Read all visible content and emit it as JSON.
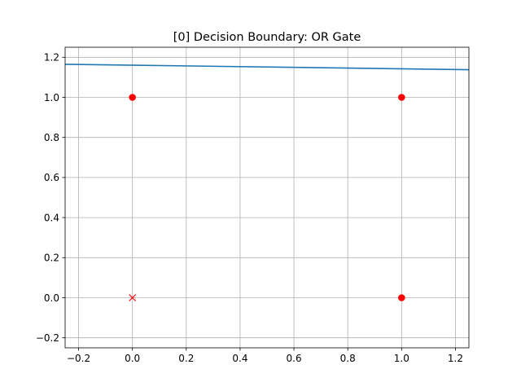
{
  "chart_data": {
    "type": "scatter",
    "title": "[0] Decision Boundary: OR Gate",
    "xlabel": "",
    "ylabel": "",
    "xlim": [
      -0.25,
      1.25
    ],
    "ylim": [
      -0.25,
      1.25
    ],
    "x_ticks": [
      -0.2,
      0.0,
      0.2,
      0.4,
      0.6,
      0.8,
      1.0,
      1.2
    ],
    "y_ticks": [
      -0.2,
      0.0,
      0.2,
      0.4,
      0.6,
      0.8,
      1.0,
      1.2
    ],
    "x_tick_labels": [
      "−0.2",
      "0.0",
      "0.2",
      "0.4",
      "0.6",
      "0.8",
      "1.0",
      "1.2"
    ],
    "y_tick_labels": [
      "−0.2",
      "0.0",
      "0.2",
      "0.4",
      "0.6",
      "0.8",
      "1.0",
      "1.2"
    ],
    "grid": true,
    "points": [
      {
        "x": 0,
        "y": 0,
        "marker": "x",
        "color": "#ff0000"
      },
      {
        "x": 0,
        "y": 1,
        "marker": "o",
        "color": "#ff0000"
      },
      {
        "x": 1,
        "y": 0,
        "marker": "o",
        "color": "#ff0000"
      },
      {
        "x": 1,
        "y": 1,
        "marker": "o",
        "color": "#ff0000"
      }
    ],
    "boundary_line": {
      "color": "#1f77b4",
      "x": [
        -0.25,
        1.25
      ],
      "y": [
        1.165,
        1.138
      ]
    }
  }
}
